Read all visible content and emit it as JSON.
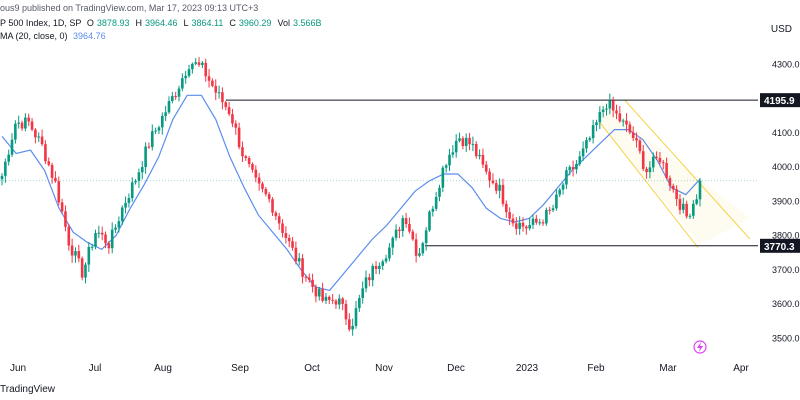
{
  "header": {
    "publisher": "ous9 published on TradingView.com, Mar 17, 2023 09:13 UTC+3",
    "symbol": "P 500 Index, 1D, SP",
    "ohlc": [
      {
        "label": "O",
        "value": "3878.93"
      },
      {
        "label": "H",
        "value": "3964.46"
      },
      {
        "label": "L",
        "value": "3864.11"
      },
      {
        "label": "C",
        "value": "3960.29"
      },
      {
        "label": "Vol",
        "value": "3.566B"
      }
    ],
    "ma_label": "MA (20, close, 0)",
    "ma_value": "3964.76"
  },
  "currency": "USD",
  "footer": "TradingView",
  "colors": {
    "up": "#089981",
    "down": "#f23645",
    "ma": "#5b8def",
    "channel": "#f5d142",
    "level": "#131722"
  },
  "chart_data": {
    "type": "candlestick",
    "ylim": [
      3460,
      4360
    ],
    "yticks": [
      3500,
      3600,
      3700,
      3800,
      3900,
      4000,
      4100,
      4200,
      4300
    ],
    "x_labels": [
      "Jun",
      "Jul",
      "Aug",
      "Sep",
      "Oct",
      "Nov",
      "Dec",
      "2023",
      "Feb",
      "Mar",
      "Apr"
    ],
    "anchors": [
      [
        3950,
        4000
      ],
      [
        4080,
        4180
      ],
      [
        4120,
        4140
      ],
      [
        4030,
        4090
      ],
      [
        3930,
        3970
      ],
      [
        3760,
        3800
      ],
      [
        3680,
        3700
      ],
      [
        3800,
        3830
      ],
      [
        3760,
        3790
      ],
      [
        3870,
        3900
      ],
      [
        3950,
        3990
      ],
      [
        4050,
        4100
      ],
      [
        4130,
        4170
      ],
      [
        4200,
        4250
      ],
      [
        4300,
        4320
      ],
      [
        4280,
        4290
      ],
      [
        4200,
        4230
      ],
      [
        4140,
        4180
      ],
      [
        4000,
        4060
      ],
      [
        3930,
        3960
      ],
      [
        3880,
        3920
      ],
      [
        3790,
        3830
      ],
      [
        3700,
        3750
      ],
      [
        3650,
        3670
      ],
      [
        3590,
        3620
      ],
      [
        3600,
        3630
      ],
      [
        3520,
        3550
      ],
      [
        3630,
        3680
      ],
      [
        3700,
        3750
      ],
      [
        3750,
        3790
      ],
      [
        3840,
        3890
      ],
      [
        3720,
        3760
      ],
      [
        3860,
        3900
      ],
      [
        3990,
        4040
      ],
      [
        4070,
        4110
      ],
      [
        4050,
        4080
      ],
      [
        3970,
        4000
      ],
      [
        3930,
        3950
      ],
      [
        3830,
        3860
      ],
      [
        3810,
        3840
      ],
      [
        3830,
        3850
      ],
      [
        3860,
        3890
      ],
      [
        3950,
        3990
      ],
      [
        4000,
        4040
      ],
      [
        4080,
        4120
      ],
      [
        4180,
        4200
      ],
      [
        4130,
        4150
      ],
      [
        4070,
        4110
      ],
      [
        3970,
        4010
      ],
      [
        3990,
        4070
      ],
      [
        3920,
        3950
      ],
      [
        3840,
        3870
      ],
      [
        3920,
        3960
      ]
    ],
    "ma_points": [
      [
        4090,
        4040,
        4050,
        3990,
        3880,
        3810,
        3780,
        3760,
        3800,
        3880,
        3950,
        4030,
        4140,
        4210,
        4210,
        4140,
        4030,
        3940,
        3860,
        3810,
        3760,
        3700,
        3650,
        3640,
        3690,
        3740,
        3790,
        3830,
        3880,
        3930,
        3960,
        3980,
        3980,
        3940,
        3880,
        3850,
        3840,
        3850,
        3890,
        3940,
        3990,
        4030,
        4070,
        4110,
        4110,
        4080,
        4020,
        3940,
        3920,
        3965
      ]
    ],
    "levels": [
      {
        "price": 4195.9,
        "label": "4195.9"
      },
      {
        "price": 3770.3,
        "label": "3770.3"
      }
    ],
    "channel": {
      "upper": [
        [
          4195,
          0
        ],
        [
          3850,
          1
        ]
      ],
      "lower": [
        [
          4130,
          0
        ],
        [
          3775,
          1
        ]
      ]
    },
    "last_price": 3960.29
  }
}
